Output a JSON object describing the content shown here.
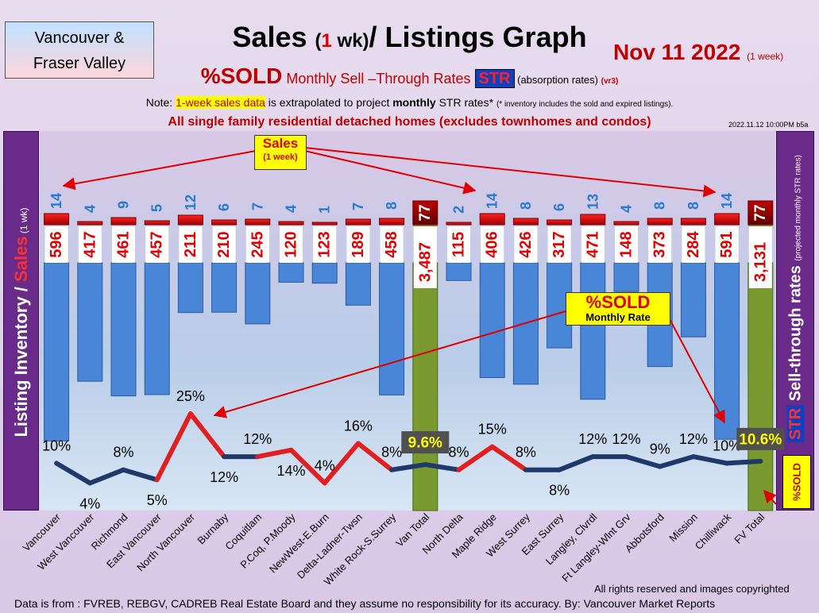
{
  "header": {
    "region_line1": "Vancouver &",
    "region_line2": "Fraser Valley",
    "title_a": "Sales ",
    "title_b": "(",
    "title_num": "1",
    "title_c": " wk)",
    "title_d": "/ Listings Graph",
    "date": "Nov 11  2022 ",
    "date_note": "(1 week)",
    "subtitle_sold": "%SOLD",
    "subtitle_text": " Monthly Sell –Through Rates ",
    "subtitle_str": "STR",
    "subtitle_abs": " (absorption rates) ",
    "subtitle_ver": "(vr3)",
    "note_prefix": "Note: ",
    "note_highlight": "1-week sales data",
    "note_mid": " is extrapolated to project ",
    "note_bold": "monthly",
    "note_tail": " STR rates* ",
    "note_small": "(* inventory includes the sold and expired listings).",
    "scope": "All single family residential detached homes (excludes townhomes and condos)",
    "stamp": "2022.11.12 10:00PM b5a"
  },
  "left_axis": {
    "a": "Listing Inventory ",
    "slash": "/ ",
    "b": "Sales",
    "c": " (1 wk)"
  },
  "right_axis": {
    "str": "STR",
    "a": " Sell-through rates ",
    "b": "(projected monthly STR rates)"
  },
  "sold_badge": "%SOLD",
  "callouts": {
    "sales_a": "Sales",
    "sales_b": "(1 week)",
    "sold_a": "%SOLD",
    "sold_b": "Monthly Rate"
  },
  "footer": {
    "source": "Data is from : FVREB, REBGV, CADREB Real Estate Board and they assume no responsibility for its accuracy. By: Vancouver Market Reports",
    "rights": "All rights reserved and  images copyrighted"
  },
  "colors": {
    "listing_bar": "#4a86d8",
    "sales_bar": "#e00000",
    "total_bar": "#7a9a30",
    "line_dark": "#1f3a6a",
    "line_red": "#e02020"
  },
  "chart_data": {
    "type": "bar",
    "categories": [
      "Vancouver",
      "West Vancouver",
      "Richmond",
      "East Vancouver",
      "North Vancouver",
      "Burnaby",
      "Coquitlam",
      "P.Coq, P.Moody",
      "NewWest-E.Burn",
      "Delta-Ladner-Twsn",
      "White Rock-S.Surrey",
      "Van Total",
      "North Delta",
      "Maple Ridge",
      "West Surrey",
      "East Surrey",
      "Langley, Clvrdl",
      "Ft Langley-Wlnt Grv",
      "Abbotsford",
      "Mission",
      "Chilliwack",
      "FV Total"
    ],
    "series": [
      {
        "name": "Listing Inventory",
        "values": [
          596,
          417,
          461,
          457,
          211,
          210,
          245,
          120,
          123,
          189,
          458,
          3487,
          115,
          406,
          426,
          317,
          471,
          148,
          373,
          284,
          591,
          3131
        ],
        "labels": [
          "596",
          "417",
          "461",
          "457",
          "211",
          "210",
          "245",
          "120",
          "123",
          "189",
          "458",
          "3,487",
          "115",
          "406",
          "426",
          "317",
          "471",
          "148",
          "373",
          "284",
          "591",
          "3,131"
        ]
      },
      {
        "name": "Sales",
        "values": [
          14,
          4,
          9,
          5,
          12,
          6,
          7,
          4,
          1,
          7,
          8,
          77,
          2,
          14,
          8,
          6,
          13,
          4,
          8,
          8,
          14,
          77
        ],
        "labels": [
          "14",
          "4",
          "9",
          "5",
          "12",
          "6",
          "7",
          "4",
          "1",
          "7",
          "8",
          "77",
          "2",
          "14",
          "8",
          "6",
          "13",
          "4",
          "8",
          "8",
          "14",
          "77"
        ]
      },
      {
        "name": "%SOLD",
        "type": "line",
        "values": [
          10,
          4,
          8,
          5,
          25,
          12,
          12,
          14,
          4,
          16,
          8,
          9.6,
          8,
          15,
          8,
          8,
          12,
          12,
          9,
          12,
          10,
          10.6
        ],
        "labels": [
          "10%",
          "4%",
          "8%",
          "5%",
          "25%",
          "12%",
          "12%",
          "14%",
          "4%",
          "16%",
          "8%",
          "9.6%",
          "8%",
          "15%",
          "8%",
          "8%",
          "12%",
          "12%",
          "9%",
          "12%",
          "10%",
          "10.6%"
        ]
      }
    ],
    "totals": [
      "Van Total",
      "FV Total"
    ],
    "title": "Sales (1 wk)/ Listings Graph",
    "xlabel": "",
    "ylabel": "Listing Inventory / Sales (1 wk)",
    "y2label": "STR Sell-through rates (projected monthly STR rates)",
    "grid": false,
    "legend": "none"
  }
}
